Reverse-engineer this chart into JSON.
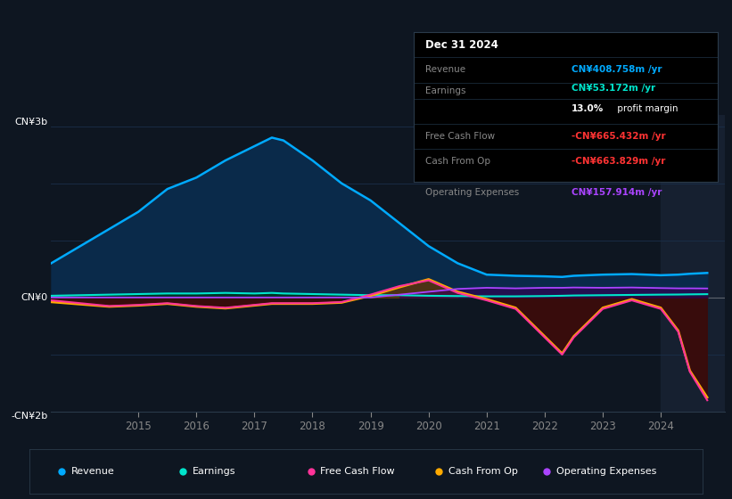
{
  "background_color": "#0e1621",
  "chart_bg": "#0e1621",
  "ylim": [
    -2000,
    3200
  ],
  "ylabel_top": "CN¥3b",
  "ylabel_zero": "CN¥0",
  "ylabel_bot": "-CN¥2b",
  "years": [
    2013.5,
    2014.0,
    2014.5,
    2015.0,
    2015.5,
    2016.0,
    2016.5,
    2017.0,
    2017.3,
    2017.5,
    2018.0,
    2018.5,
    2019.0,
    2019.5,
    2020.0,
    2020.5,
    2021.0,
    2021.5,
    2022.0,
    2022.3,
    2022.5,
    2023.0,
    2023.5,
    2024.0,
    2024.3,
    2024.5,
    2024.8
  ],
  "revenue": [
    600,
    900,
    1200,
    1500,
    1900,
    2100,
    2400,
    2650,
    2800,
    2750,
    2400,
    2000,
    1700,
    1300,
    900,
    600,
    400,
    380,
    370,
    360,
    380,
    400,
    410,
    390,
    400,
    415,
    430
  ],
  "earnings": [
    30,
    40,
    50,
    60,
    70,
    70,
    80,
    70,
    80,
    70,
    60,
    50,
    40,
    40,
    30,
    25,
    20,
    20,
    25,
    30,
    35,
    40,
    45,
    50,
    52,
    55,
    58
  ],
  "free_cash_flow": [
    -50,
    -100,
    -150,
    -130,
    -100,
    -150,
    -180,
    -130,
    -100,
    -100,
    -100,
    -80,
    50,
    200,
    300,
    80,
    -50,
    -200,
    -700,
    -1000,
    -700,
    -200,
    -50,
    -200,
    -600,
    -1300,
    -1800
  ],
  "cash_from_op": [
    -80,
    -120,
    -160,
    -140,
    -110,
    -160,
    -190,
    -140,
    -110,
    -110,
    -110,
    -90,
    30,
    180,
    320,
    100,
    -30,
    -180,
    -680,
    -980,
    -680,
    -180,
    -30,
    -180,
    -580,
    -1280,
    -1750
  ],
  "operating_expenses": [
    0,
    0,
    0,
    0,
    0,
    0,
    0,
    0,
    0,
    0,
    0,
    0,
    0,
    50,
    100,
    150,
    170,
    160,
    170,
    170,
    175,
    170,
    175,
    165,
    160,
    160,
    158
  ],
  "revenue_color": "#00aaff",
  "revenue_fill": "#0a2a4a",
  "earnings_color": "#00e5cc",
  "earnings_fill": "#003322",
  "free_cash_flow_color": "#ff3399",
  "cash_from_op_color": "#ffaa00",
  "cash_from_op_fill_pos": "#4a3010",
  "cash_from_op_fill_neg": "#3a0f0f",
  "operating_expenses_color": "#aa44ff",
  "zero_line_color": "#cccccc",
  "grid_color": "#1a2f4a",
  "highlight_x": 2024.0,
  "highlight_color": "#162030",
  "xmin": 2013.5,
  "xmax": 2025.1,
  "xtick_years": [
    2015,
    2016,
    2017,
    2018,
    2019,
    2020,
    2021,
    2022,
    2023,
    2024
  ],
  "title_text": "Dec 31 2024",
  "revenue_label": "Revenue",
  "revenue_val": "CN¥408.758m /yr",
  "revenue_val_color": "#00aaff",
  "earnings_label": "Earnings",
  "earnings_val": "CN¥53.172m /yr",
  "earnings_val_color": "#00e5cc",
  "profit_margin_val": "13.0%",
  "profit_margin_text": " profit margin",
  "fcf_label": "Free Cash Flow",
  "fcf_val": "-CN¥665.432m /yr",
  "fcf_val_color": "#ff3333",
  "cashop_label": "Cash From Op",
  "cashop_val": "-CN¥663.829m /yr",
  "cashop_val_color": "#ff3333",
  "opex_label": "Operating Expenses",
  "opex_val": "CN¥157.914m /yr",
  "opex_val_color": "#aa44ff",
  "legend_items": [
    {
      "label": "Revenue",
      "color": "#00aaff"
    },
    {
      "label": "Earnings",
      "color": "#00e5cc"
    },
    {
      "label": "Free Cash Flow",
      "color": "#ff3399"
    },
    {
      "label": "Cash From Op",
      "color": "#ffaa00"
    },
    {
      "label": "Operating Expenses",
      "color": "#aa44ff"
    }
  ]
}
